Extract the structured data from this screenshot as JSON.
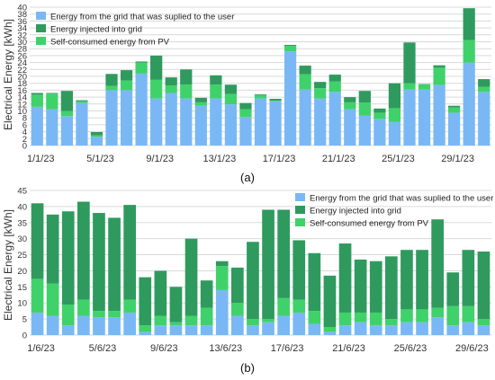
{
  "colors": {
    "grid_supplied": "#7ab8f5",
    "injected": "#2f9a5e",
    "self_consumed": "#3fd26a",
    "gridline": "#d9d9d9",
    "axis_text": "#333333"
  },
  "chart_data": [
    {
      "type": "bar",
      "stacked": true,
      "panel_label": "(a)",
      "ylabel": "Electrical Energy [kWh]",
      "ylim": [
        0,
        40
      ],
      "yticks": [
        0,
        2,
        4,
        6,
        8,
        10,
        12,
        14,
        16,
        18,
        20,
        22,
        24,
        26,
        28,
        30,
        32,
        34,
        36,
        38,
        40
      ],
      "grid": true,
      "legend_position": "top-left",
      "x_tick_labels": [
        {
          "index": 0,
          "label": "1/1/23"
        },
        {
          "index": 4,
          "label": "5/1/23"
        },
        {
          "index": 8,
          "label": "9/1/23"
        },
        {
          "index": 12,
          "label": "13/1/23"
        },
        {
          "index": 16,
          "label": "17/1/23"
        },
        {
          "index": 20,
          "label": "21/1/23"
        },
        {
          "index": 24,
          "label": "25/1/23"
        },
        {
          "index": 28,
          "label": "29/1/23"
        }
      ],
      "series": [
        {
          "name": "Energy from the grid that was suplied to the user",
          "color_key": "grid_supplied",
          "values": [
            11.2,
            10.5,
            8.5,
            12.3,
            2.5,
            16.0,
            16.0,
            20.8,
            13.6,
            15.2,
            13.6,
            11.5,
            13.6,
            11.9,
            8.3,
            13.6,
            12.8,
            27.2,
            16.2,
            13.6,
            15.5,
            10.5,
            8.6,
            7.7,
            6.8,
            16.2,
            16.2,
            17.5,
            9.5,
            24.0,
            15.5
          ]
        },
        {
          "name": "Self-consumed energy from PV",
          "color_key": "self_consumed",
          "values": [
            3.5,
            4.5,
            1.5,
            0.5,
            0.5,
            1.2,
            2.8,
            3.2,
            5.4,
            2.2,
            4.0,
            1.0,
            4.0,
            3.0,
            2.2,
            1.0,
            0.2,
            1.6,
            4.4,
            3.0,
            3.0,
            2.0,
            3.8,
            1.8,
            4.0,
            1.8,
            1.6,
            5.0,
            1.5,
            6.5,
            1.5
          ]
        },
        {
          "name": "Energy injected into grid",
          "color_key": "injected",
          "values": [
            0.5,
            0.2,
            5.8,
            0.3,
            0.9,
            3.5,
            3.0,
            0.3,
            7.0,
            2.3,
            4.4,
            1.3,
            2.7,
            2.7,
            1.8,
            0.2,
            0.5,
            0.3,
            2.5,
            1.8,
            2.0,
            1.5,
            3.4,
            1.2,
            7.2,
            11.8,
            0.0,
            0.7,
            0.5,
            9.2,
            2.2
          ]
        }
      ]
    },
    {
      "type": "bar",
      "stacked": true,
      "panel_label": "(b)",
      "ylabel": "Electrical Energy [kWh]",
      "ylim": [
        0,
        45
      ],
      "yticks": [
        0,
        5,
        10,
        15,
        20,
        25,
        30,
        35,
        40,
        45
      ],
      "grid": true,
      "legend_position": "top-right",
      "x_tick_labels": [
        {
          "index": 0,
          "label": "1/6/23"
        },
        {
          "index": 4,
          "label": "5/6/23"
        },
        {
          "index": 8,
          "label": "9/6/23"
        },
        {
          "index": 12,
          "label": "13/6/23"
        },
        {
          "index": 16,
          "label": "17/6/23"
        },
        {
          "index": 20,
          "label": "21/6/23"
        },
        {
          "index": 24,
          "label": "25/6/23"
        },
        {
          "index": 28,
          "label": "29/6/23"
        }
      ],
      "series": [
        {
          "name": "Energy from the grid that was suplied to the user",
          "color_key": "grid_supplied",
          "values": [
            7.0,
            6.0,
            3.0,
            6.0,
            5.5,
            5.5,
            7.0,
            1.0,
            3.0,
            3.0,
            3.0,
            3.0,
            14.0,
            6.0,
            3.0,
            4.0,
            6.0,
            7.0,
            3.5,
            1.0,
            3.0,
            4.0,
            3.0,
            3.0,
            4.0,
            4.0,
            5.5,
            3.0,
            4.0,
            3.0
          ]
        },
        {
          "name": "Self-consumed energy from PV",
          "color_key": "self_consumed",
          "values": [
            10.5,
            10.0,
            6.5,
            5.0,
            2.0,
            2.0,
            4.0,
            2.0,
            3.0,
            1.0,
            3.0,
            5.5,
            7.5,
            4.0,
            2.0,
            1.0,
            5.5,
            4.0,
            4.0,
            1.5,
            4.0,
            3.0,
            4.0,
            2.0,
            4.0,
            4.0,
            3.0,
            6.0,
            5.0,
            2.0
          ]
        },
        {
          "name": "Energy injected into grid",
          "color_key": "injected",
          "values": [
            23.5,
            21.5,
            29.0,
            30.5,
            30.5,
            29.0,
            29.5,
            15.0,
            14.0,
            11.0,
            24.0,
            8.5,
            1.5,
            11.0,
            24.0,
            34.0,
            27.5,
            18.5,
            18.0,
            16.0,
            21.5,
            16.5,
            16.0,
            19.5,
            18.5,
            18.5,
            27.5,
            10.5,
            17.5,
            21.0
          ]
        }
      ]
    }
  ]
}
